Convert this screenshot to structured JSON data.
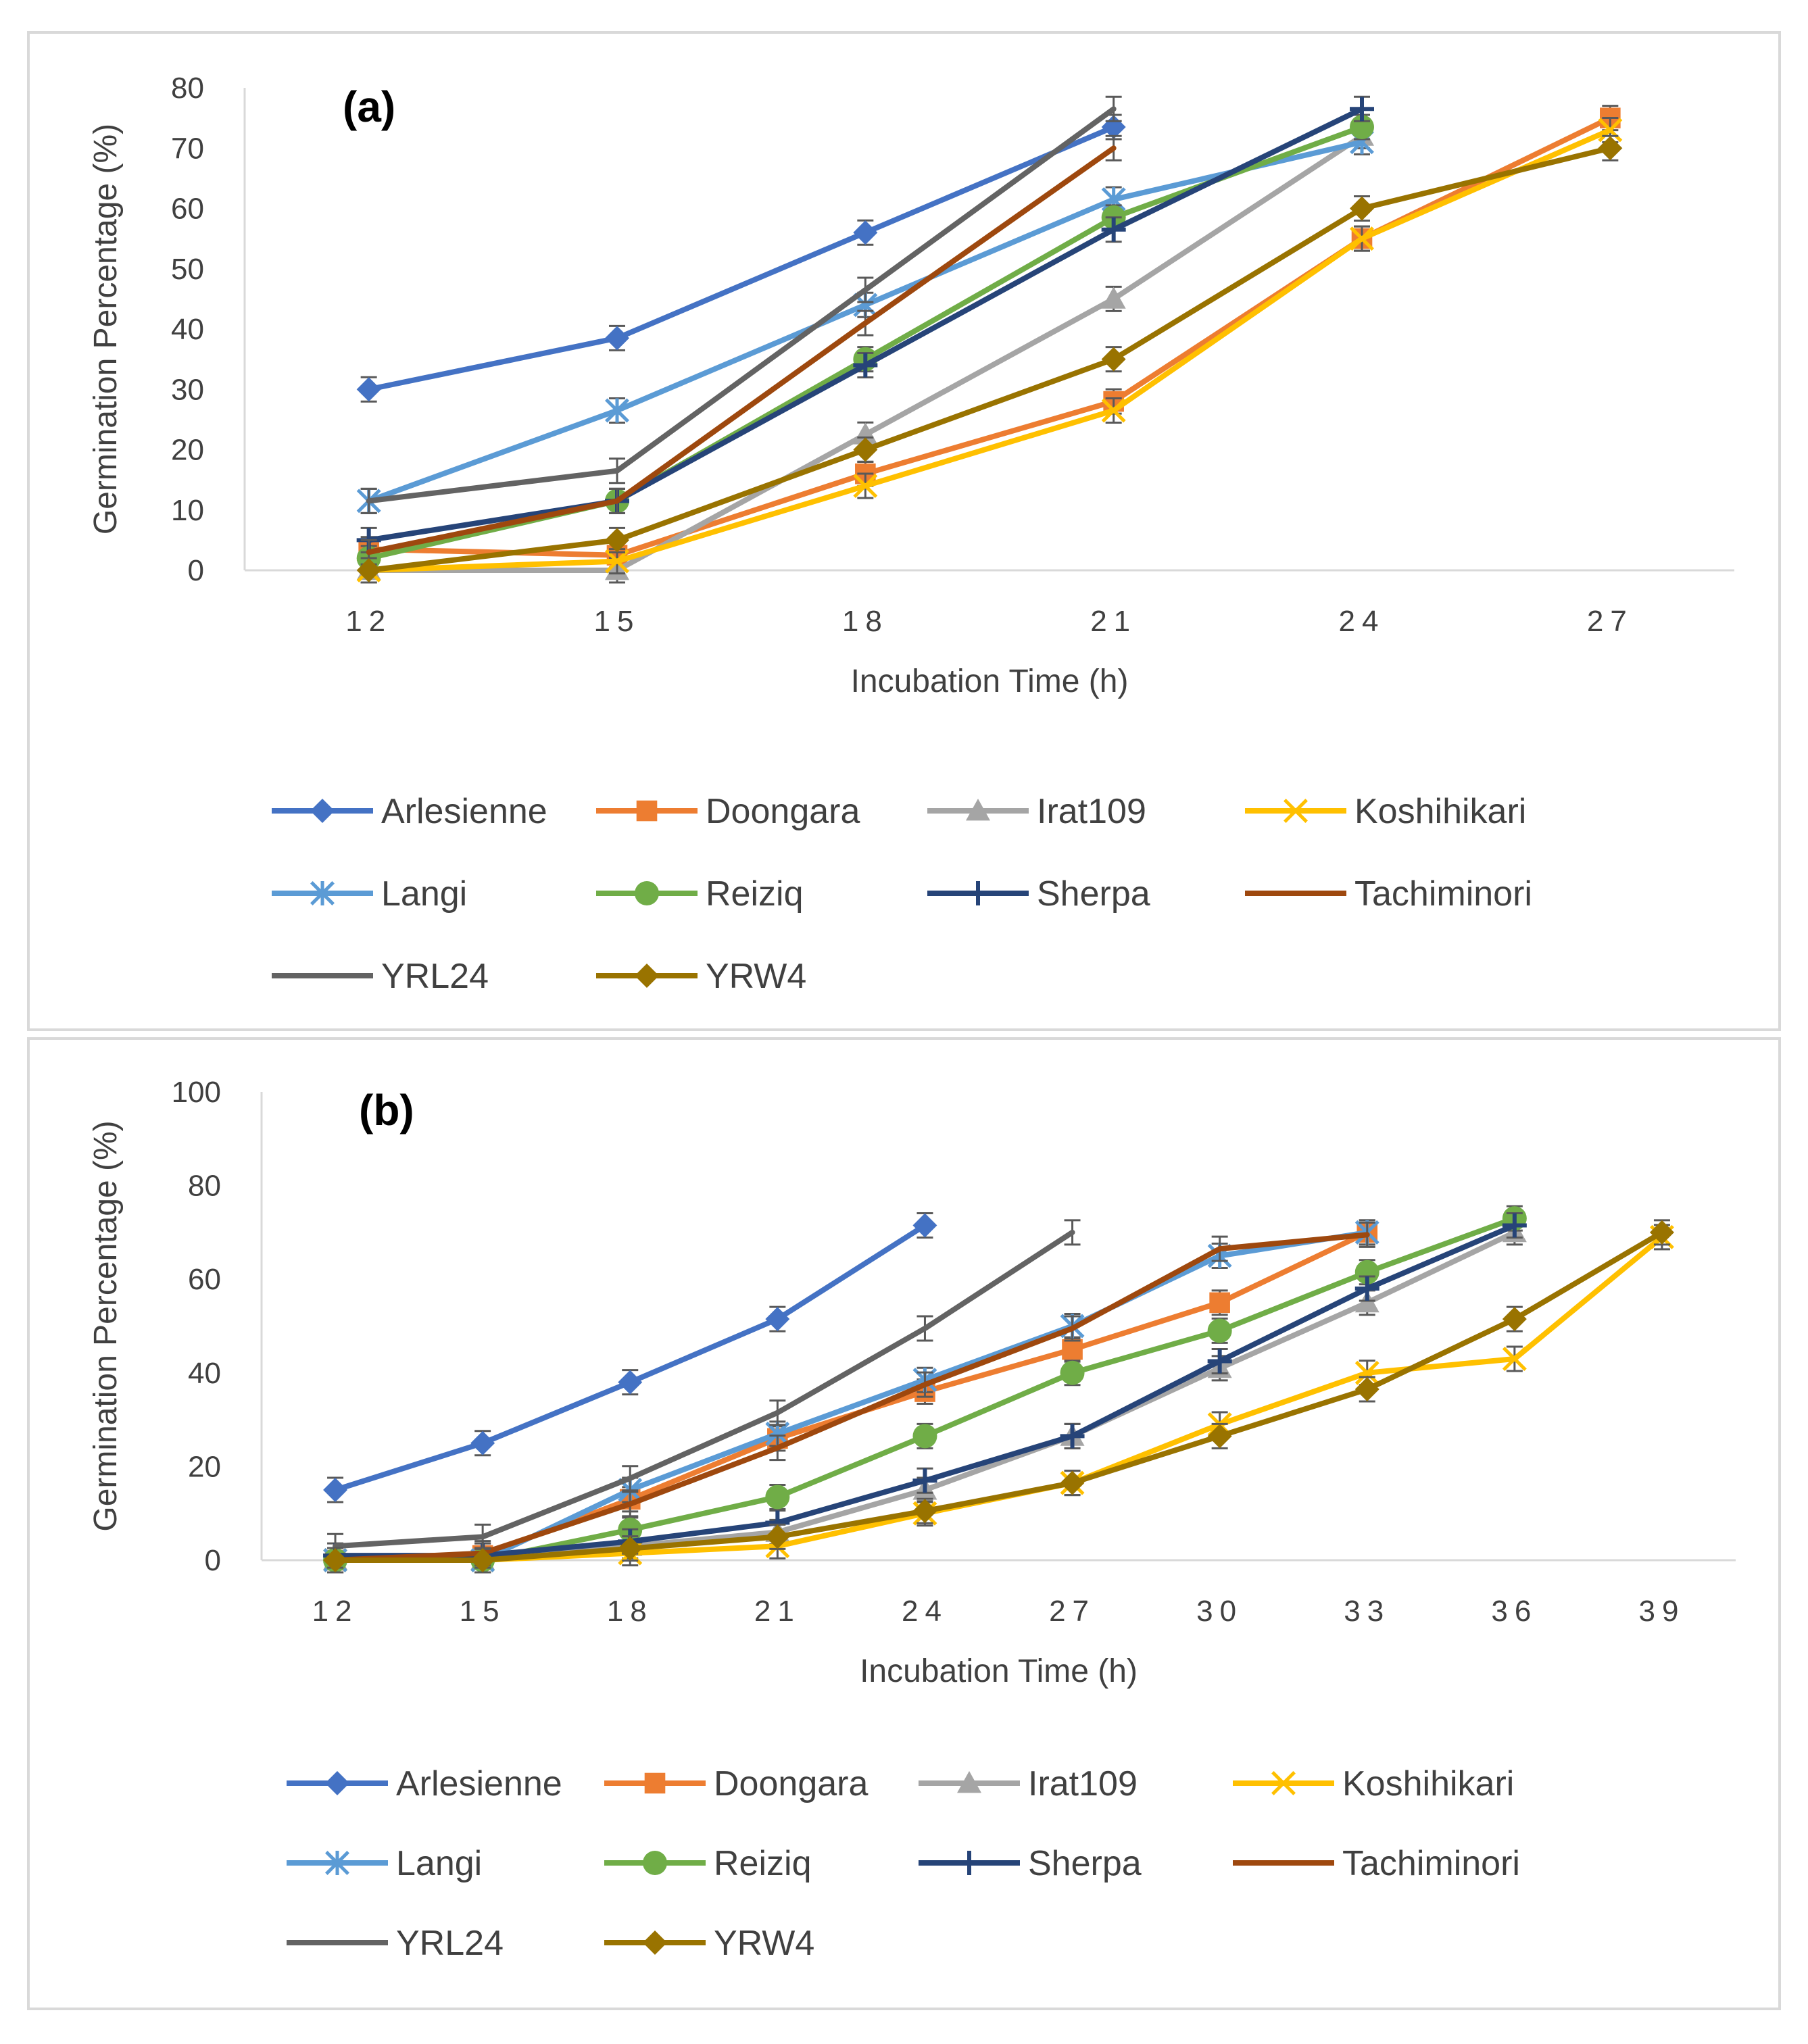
{
  "chart_data": [
    {
      "type": "line",
      "panel_label": "(a)",
      "xlabel": "Incubation Time (h)",
      "ylabel": "Germination Percentage (%)",
      "categories": [
        "12",
        "15",
        "18",
        "21",
        "24",
        "27"
      ],
      "ylim": [
        0,
        80
      ],
      "yticks": [
        0,
        10,
        20,
        30,
        40,
        50,
        60,
        70,
        80
      ],
      "series": [
        {
          "name": "Arlesienne",
          "color": "#4472C4",
          "marker": "diamond",
          "values": [
            30,
            38.5,
            56,
            73.5,
            null,
            null
          ]
        },
        {
          "name": "Doongara",
          "color": "#ED7D31",
          "marker": "square",
          "values": [
            3.5,
            2.5,
            16,
            28,
            55,
            75
          ]
        },
        {
          "name": "Irat109",
          "color": "#A5A5A5",
          "marker": "triangle",
          "values": [
            0,
            0,
            22.5,
            45,
            72,
            null
          ]
        },
        {
          "name": "Koshihikari",
          "color": "#FFC000",
          "marker": "x",
          "values": [
            0,
            1.5,
            14,
            26.5,
            55,
            73
          ]
        },
        {
          "name": "Langi",
          "color": "#5B9BD5",
          "marker": "star",
          "values": [
            11.5,
            26.5,
            44,
            61.5,
            71,
            null
          ]
        },
        {
          "name": "Reiziq",
          "color": "#70AD47",
          "marker": "circle",
          "values": [
            2,
            11.5,
            35,
            58.5,
            73.5,
            null
          ]
        },
        {
          "name": "Sherpa",
          "color": "#264478",
          "marker": "plus",
          "values": [
            5,
            11.5,
            34,
            56.5,
            76.5,
            null
          ]
        },
        {
          "name": "Tachiminori",
          "color": "#9E480E",
          "marker": "none",
          "values": [
            3,
            11.5,
            41,
            70,
            null,
            null
          ]
        },
        {
          "name": "YRL24",
          "color": "#636363",
          "marker": "none",
          "values": [
            11.5,
            16.5,
            46.5,
            76.5,
            null,
            null
          ]
        },
        {
          "name": "YRW4",
          "color": "#997300",
          "marker": "diamond",
          "values": [
            0,
            5,
            20,
            35,
            60,
            70
          ]
        }
      ]
    },
    {
      "type": "line",
      "panel_label": "(b)",
      "xlabel": "Incubation Time (h)",
      "ylabel": "Germination Percentage (%)",
      "categories": [
        "12",
        "15",
        "18",
        "21",
        "24",
        "27",
        "30",
        "33",
        "36",
        "39"
      ],
      "ylim": [
        0,
        100
      ],
      "yticks": [
        0,
        20,
        40,
        60,
        80,
        100
      ],
      "series": [
        {
          "name": "Arlesienne",
          "color": "#4472C4",
          "marker": "diamond",
          "values": [
            15,
            25,
            38,
            51.5,
            71.5,
            null,
            null,
            null,
            null,
            null
          ]
        },
        {
          "name": "Doongara",
          "color": "#ED7D31",
          "marker": "square",
          "values": [
            0,
            1,
            13,
            26,
            36,
            45,
            55,
            70,
            null,
            null
          ]
        },
        {
          "name": "Irat109",
          "color": "#A5A5A5",
          "marker": "triangle",
          "values": [
            0,
            0,
            3,
            6,
            15,
            26.5,
            41,
            55,
            70,
            null
          ]
        },
        {
          "name": "Koshihikari",
          "color": "#FFC000",
          "marker": "x",
          "values": [
            0,
            0,
            1.5,
            3,
            10,
            16.5,
            29,
            40,
            43,
            69
          ]
        },
        {
          "name": "Langi",
          "color": "#5B9BD5",
          "marker": "star",
          "values": [
            0,
            0,
            15,
            27,
            38.5,
            50,
            65,
            70,
            null,
            null
          ]
        },
        {
          "name": "Reiziq",
          "color": "#70AD47",
          "marker": "circle",
          "values": [
            0,
            0,
            6.5,
            13.5,
            26.5,
            40,
            49,
            61.5,
            73,
            null
          ]
        },
        {
          "name": "Sherpa",
          "color": "#264478",
          "marker": "plus",
          "values": [
            1,
            1,
            4,
            8,
            17,
            26.5,
            42.5,
            58,
            71.5,
            null
          ]
        },
        {
          "name": "Tachiminori",
          "color": "#9E480E",
          "marker": "none",
          "values": [
            0,
            1.5,
            12,
            24,
            37.5,
            49.5,
            66.5,
            69.5,
            null,
            null
          ]
        },
        {
          "name": "YRL24",
          "color": "#636363",
          "marker": "none",
          "values": [
            3,
            5,
            17.5,
            31.5,
            49.5,
            70,
            null,
            null,
            null,
            null
          ]
        },
        {
          "name": "YRW4",
          "color": "#997300",
          "marker": "diamond",
          "values": [
            0,
            0,
            2.5,
            5,
            10.5,
            16.5,
            26.5,
            36.5,
            51.5,
            70
          ]
        }
      ]
    }
  ]
}
